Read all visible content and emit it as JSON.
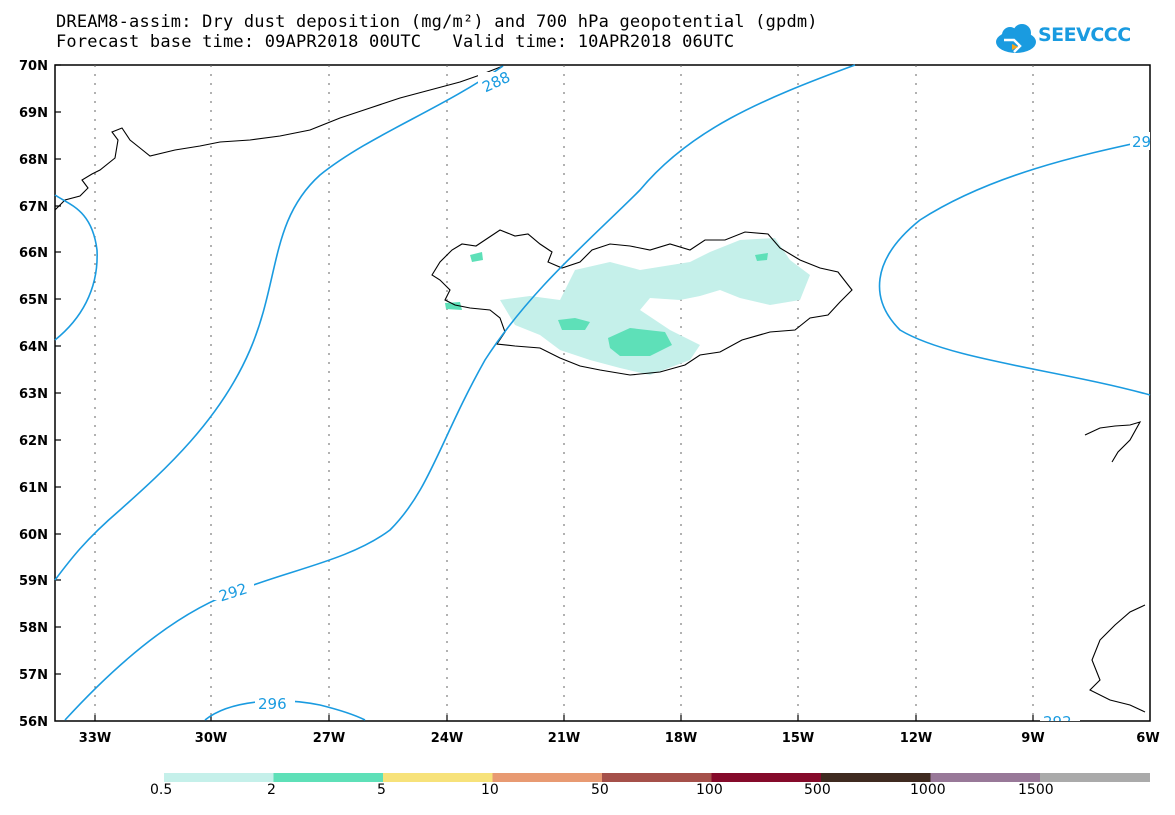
{
  "header": {
    "title": "DREAM8-assim: Dry dust deposition (mg/m²) and 700 hPa geopotential (gpdm)",
    "subtitle": "Forecast base time: 09APR2018 00UTC   Valid time: 10APR2018 06UTC"
  },
  "logo": {
    "text": "SEEVCCC"
  },
  "map": {
    "lat_labels": [
      "70N",
      "69N",
      "68N",
      "67N",
      "66N",
      "65N",
      "64N",
      "63N",
      "62N",
      "61N",
      "60N",
      "59N",
      "58N",
      "57N",
      "56N"
    ],
    "lon_labels": [
      "33W",
      "30W",
      "27W",
      "24W",
      "21W",
      "18W",
      "15W",
      "12W",
      "9W",
      "6W"
    ],
    "contour_labels": [
      "288",
      "292",
      "296",
      "29",
      "292"
    ],
    "contour_color": "#1a9be0"
  },
  "legend": {
    "colors": [
      "#c5f0ea",
      "#5ee0b8",
      "#f7e27a",
      "#e89a72",
      "#a5504a",
      "#850a2a",
      "#3f2a20",
      "#987898",
      "#aaaaaa"
    ],
    "labels": [
      "0.5",
      "2",
      "5",
      "10",
      "50",
      "100",
      "500",
      "1000",
      "1500"
    ]
  }
}
